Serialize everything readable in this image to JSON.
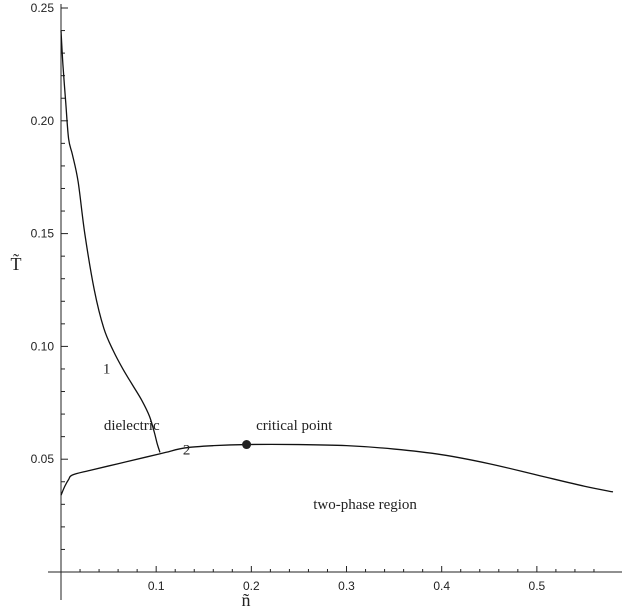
{
  "chart_data": {
    "type": "line",
    "title": "",
    "xlabel": "ñ",
    "ylabel": "T̃",
    "xlim": [
      0,
      0.58
    ],
    "ylim": [
      0,
      0.25
    ],
    "x_ticks": [
      {
        "value": 0.1,
        "label": "0.1"
      },
      {
        "value": 0.2,
        "label": "0.2"
      },
      {
        "value": 0.3,
        "label": "0.3"
      },
      {
        "value": 0.4,
        "label": "0.4"
      },
      {
        "value": 0.5,
        "label": "0.5"
      }
    ],
    "y_ticks": [
      {
        "value": 0.05,
        "label": "0.05"
      },
      {
        "value": 0.1,
        "label": "0.10"
      },
      {
        "value": 0.15,
        "label": "0.15"
      },
      {
        "value": 0.2,
        "label": "0.20"
      },
      {
        "value": 0.25,
        "label": "0.25"
      }
    ],
    "grid": false,
    "series": [
      {
        "id": "curve-1",
        "x": [
          0.0,
          0.002,
          0.005,
          0.008,
          0.012,
          0.018,
          0.025,
          0.035,
          0.045,
          0.055,
          0.065,
          0.075,
          0.085,
          0.093,
          0.098,
          0.101,
          0.104
        ],
        "y": [
          0.24,
          0.225,
          0.208,
          0.192,
          0.185,
          0.173,
          0.15,
          0.125,
          0.108,
          0.098,
          0.09,
          0.083,
          0.076,
          0.069,
          0.062,
          0.057,
          0.053
        ]
      },
      {
        "id": "curve-2",
        "x": [
          0.0,
          0.004,
          0.008,
          0.012,
          0.03,
          0.06,
          0.09,
          0.11,
          0.13,
          0.16,
          0.195,
          0.25,
          0.3,
          0.35,
          0.4,
          0.45,
          0.5,
          0.55,
          0.58
        ],
        "y": [
          0.034,
          0.038,
          0.041,
          0.043,
          0.045,
          0.048,
          0.051,
          0.053,
          0.055,
          0.056,
          0.0565,
          0.0565,
          0.056,
          0.0545,
          0.052,
          0.048,
          0.043,
          0.038,
          0.0355
        ]
      }
    ],
    "points": [
      {
        "id": "critical-point",
        "x": 0.195,
        "y": 0.0565
      }
    ],
    "annotations": [
      {
        "id": "label-1",
        "text": "1",
        "x": 0.044,
        "y": 0.088
      },
      {
        "id": "label-2",
        "text": "2",
        "x": 0.128,
        "y": 0.052
      },
      {
        "id": "label-critical-point",
        "text": "critical point",
        "x": 0.205,
        "y": 0.063
      },
      {
        "id": "label-dielectric",
        "text": "dielectric",
        "x": 0.045,
        "y": 0.063
      },
      {
        "id": "label-two-phase",
        "text": "two-phase region",
        "x": 0.265,
        "y": 0.028
      }
    ]
  }
}
